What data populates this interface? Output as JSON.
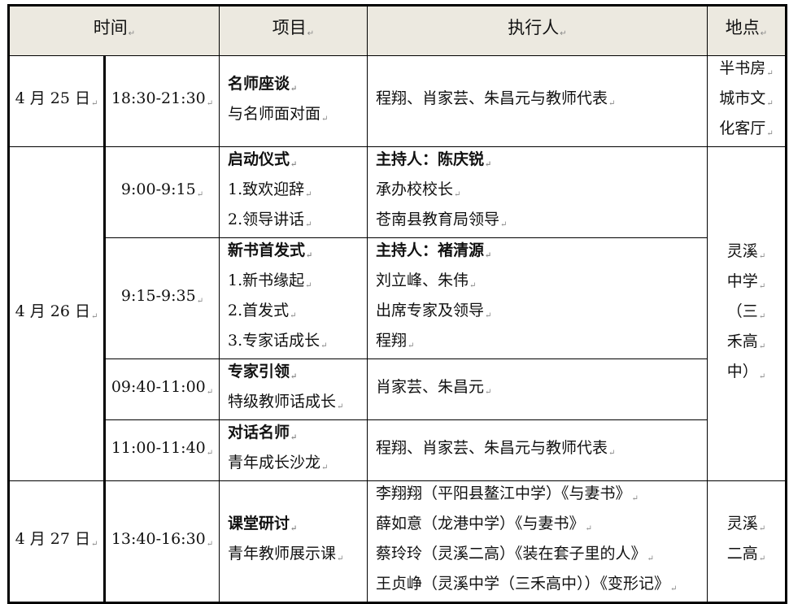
{
  "header": [
    "时间",
    "项目",
    "执行人",
    "地点"
  ],
  "rows": [
    {
      "date": "4 月 25 日",
      "time": "18:30-21:30",
      "item": [
        {
          "text": "名师座谈",
          "bold": true
        },
        {
          "text": "与名师面对面"
        }
      ],
      "people": [
        {
          "text": "程翔、肖家芸、朱昌元与教师代表"
        }
      ],
      "place": [
        "半书房",
        "城市文",
        "化客厅"
      ]
    },
    {
      "date": "4 月 26 日",
      "time": "9:00-9:15",
      "item": [
        {
          "text": "启动仪式",
          "bold": true
        },
        {
          "text": "1.致欢迎辞"
        },
        {
          "text": "2.领导讲话"
        }
      ],
      "people": [
        {
          "text": "主持人：陈庆锐",
          "bold": true
        },
        {
          "text": "承办校校长"
        },
        {
          "text": "苍南县教育局领导"
        }
      ],
      "place": [
        "灵溪",
        "中学",
        "（三",
        "禾高",
        "中）"
      ]
    },
    {
      "time": "9:15-9:35",
      "item": [
        {
          "text": "新书首发式",
          "bold": true
        },
        {
          "text": "1.新书缘起"
        },
        {
          "text": "2.首发式"
        },
        {
          "text": "3.专家话成长"
        }
      ],
      "people": [
        {
          "text": "主持人：褚清源",
          "bold": true
        },
        {
          "text": "刘立峰、朱伟"
        },
        {
          "text": "出席专家及领导"
        },
        {
          "text": "程翔"
        }
      ]
    },
    {
      "time": "09:40-11:00",
      "item": [
        {
          "text": "专家引领",
          "bold": true
        },
        {
          "text": "特级教师话成长"
        }
      ],
      "people": [
        {
          "text": "肖家芸、朱昌元"
        }
      ]
    },
    {
      "time": "11:00-11:40",
      "item": [
        {
          "text": "对话名师",
          "bold": true
        },
        {
          "text": "青年成长沙龙"
        }
      ],
      "people": [
        {
          "text": "程翔、肖家芸、朱昌元与教师代表"
        }
      ]
    },
    {
      "date": "4 月 27 日",
      "time": "13:40-16:30",
      "item": [
        {
          "text": "课堂研讨",
          "bold": true
        },
        {
          "text": "青年教师展示课"
        }
      ],
      "people": [
        {
          "text": "李翔翔（平阳县鳌江中学）《与妻书》"
        },
        {
          "text": "薛如意（龙港中学）《与妻书》"
        },
        {
          "text": "蔡玲玲（灵溪二高）《装在套子里的人》"
        },
        {
          "text": "王贞峥（灵溪中学（三禾高中））《变形记》"
        }
      ],
      "place": [
        "灵溪",
        "二高"
      ]
    }
  ]
}
